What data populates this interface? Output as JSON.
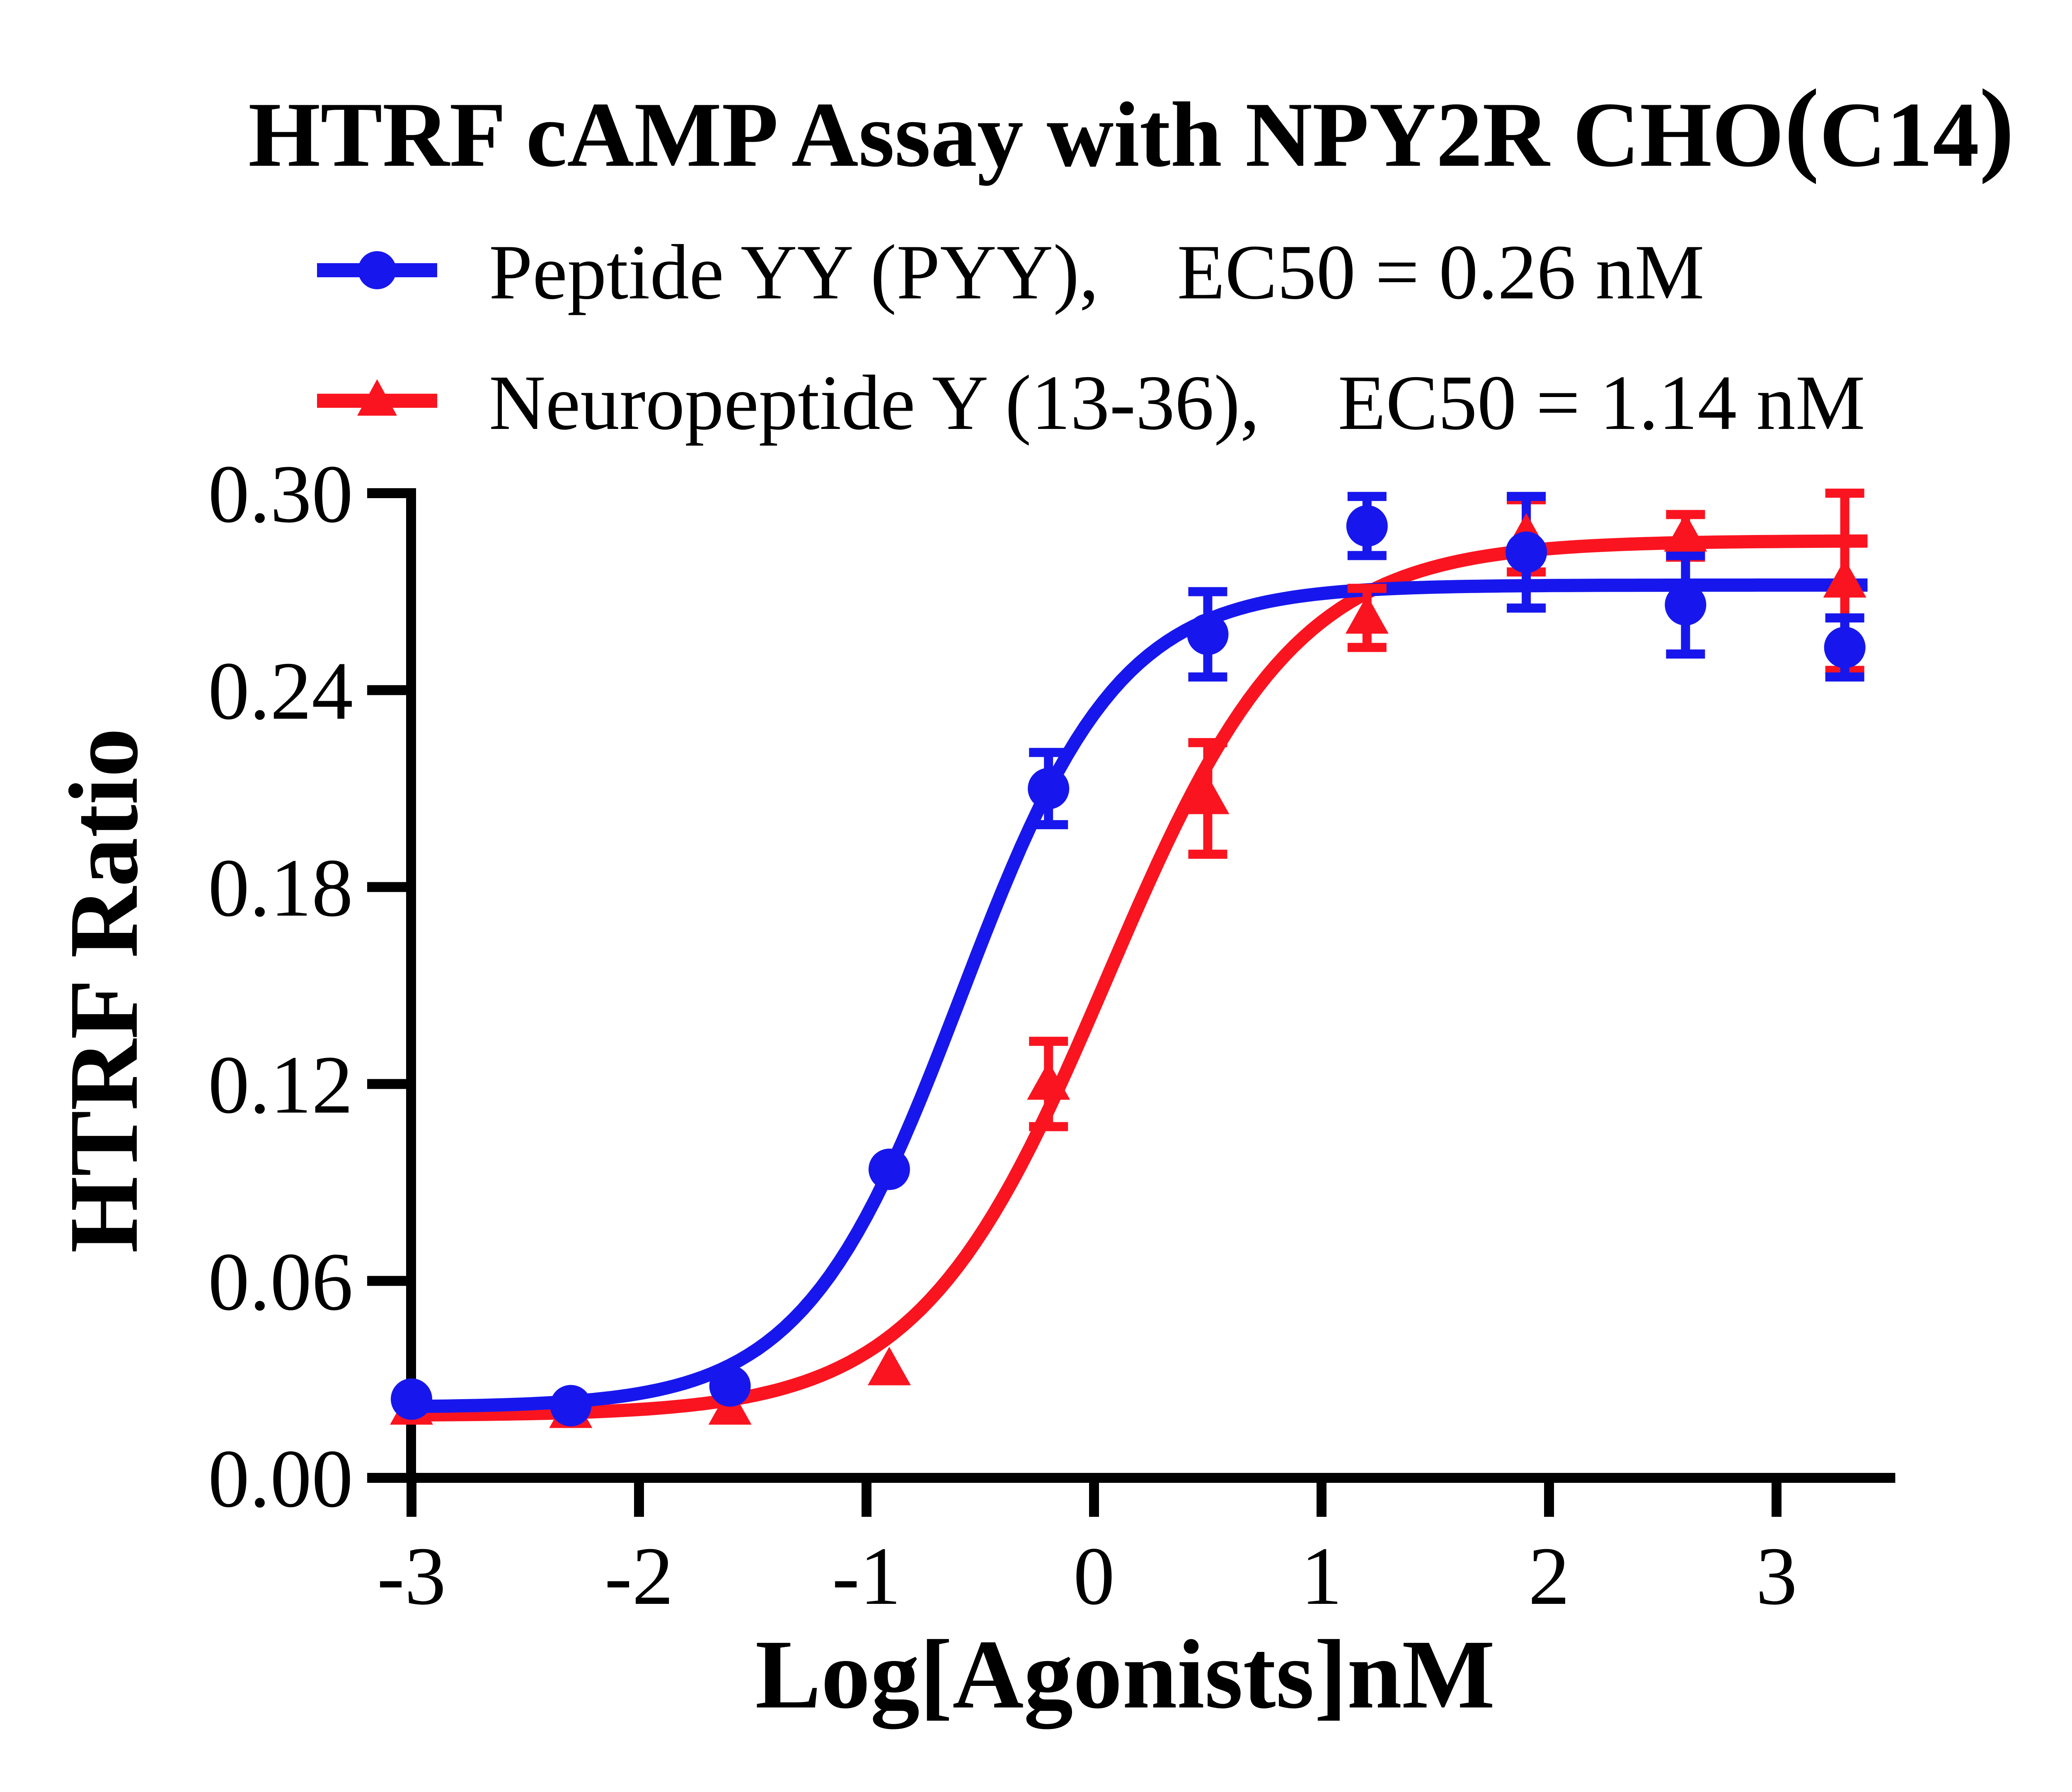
{
  "chart_data": {
    "type": "scatter",
    "title": "HTRF cAMP Assay with NPY2R CHO（C14）",
    "title_pre": "HTRF cAMP Assay with NPY2R CHO",
    "title_paren_inner": "C14",
    "xlabel": "Log[Agonists]nM",
    "ylabel": "HTRF Ratio",
    "x_ticks": [
      -3,
      -2,
      -1,
      0,
      1,
      2,
      3
    ],
    "y_ticks": [
      0.0,
      0.06,
      0.12,
      0.18,
      0.24,
      0.3
    ],
    "xlim": [
      -3,
      3.5
    ],
    "ylim": [
      0.0,
      0.3
    ],
    "grid": false,
    "legend_position": "top-left",
    "background": "#ffffff",
    "axis_color": "#000000",
    "series": [
      {
        "name": "Neuropeptide Y (13-36)",
        "legend_label": "Neuropeptide Y (13-36),  EC50 = 1.14 nM",
        "ec50_label": "EC50 = 1.14 nM",
        "color": "#fa1420",
        "marker": "triangle",
        "x": [
          -3,
          -2.3,
          -1.6,
          -0.9,
          -0.2,
          0.5,
          1.2,
          1.9,
          2.6,
          3.3
        ],
        "y": [
          0.021,
          0.02,
          0.021,
          0.033,
          0.12,
          0.207,
          0.262,
          0.287,
          0.287,
          0.273
        ],
        "yerr": [
          0,
          0,
          0,
          0,
          0.013,
          0.017,
          0.009,
          0.011,
          0.0065,
          0.027
        ],
        "fit": {
          "model": "4PL",
          "bottom": 0.019,
          "top": 0.2855,
          "logEC50": 0.057,
          "hill": 1.05
        }
      },
      {
        "name": "Peptide YY (PYY)",
        "legend_label": "Peptide YY (PYY),  EC50 = 0.26 nM",
        "ec50_label": "EC50 = 0.26 nM",
        "color": "#1717ed",
        "marker": "circle",
        "x": [
          -3,
          -2.3,
          -1.6,
          -0.9,
          -0.2,
          0.5,
          1.2,
          1.9,
          2.6,
          3.3
        ],
        "y": [
          0.024,
          0.022,
          0.028,
          0.094,
          0.21,
          0.257,
          0.29,
          0.282,
          0.266,
          0.253
        ],
        "yerr": [
          0,
          0,
          0,
          0,
          0.011,
          0.013,
          0.009,
          0.017,
          0.015,
          0.009
        ],
        "fit": {
          "model": "4PL",
          "bottom": 0.0215,
          "top": 0.272,
          "logEC50": -0.585,
          "hill": 1.25
        }
      }
    ],
    "legend_order": [
      1,
      0
    ]
  }
}
